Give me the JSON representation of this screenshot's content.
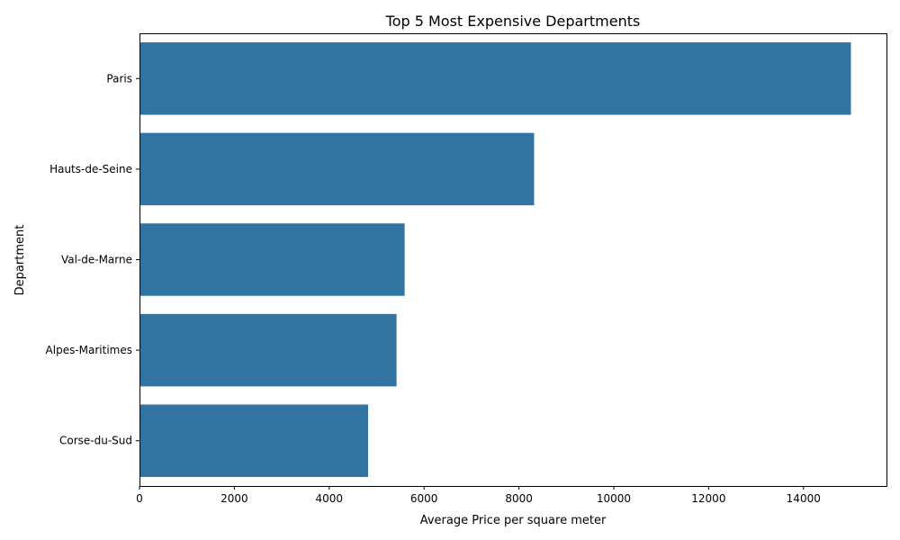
{
  "chart_data": {
    "type": "bar",
    "orientation": "horizontal",
    "title": "Top 5 Most Expensive Departments",
    "xlabel": "Average Price per square meter",
    "ylabel": "Department",
    "categories": [
      "Paris",
      "Hauts-de-Seine",
      "Val-de-Marne",
      "Alpes-Maritimes",
      "Corse-du-Sud"
    ],
    "values": [
      15000,
      8320,
      5590,
      5420,
      4820
    ],
    "xlim": [
      0,
      15750
    ],
    "xticks": [
      0,
      2000,
      4000,
      6000,
      8000,
      10000,
      12000,
      14000
    ],
    "bar_color": "#3274a1",
    "grid": false
  }
}
